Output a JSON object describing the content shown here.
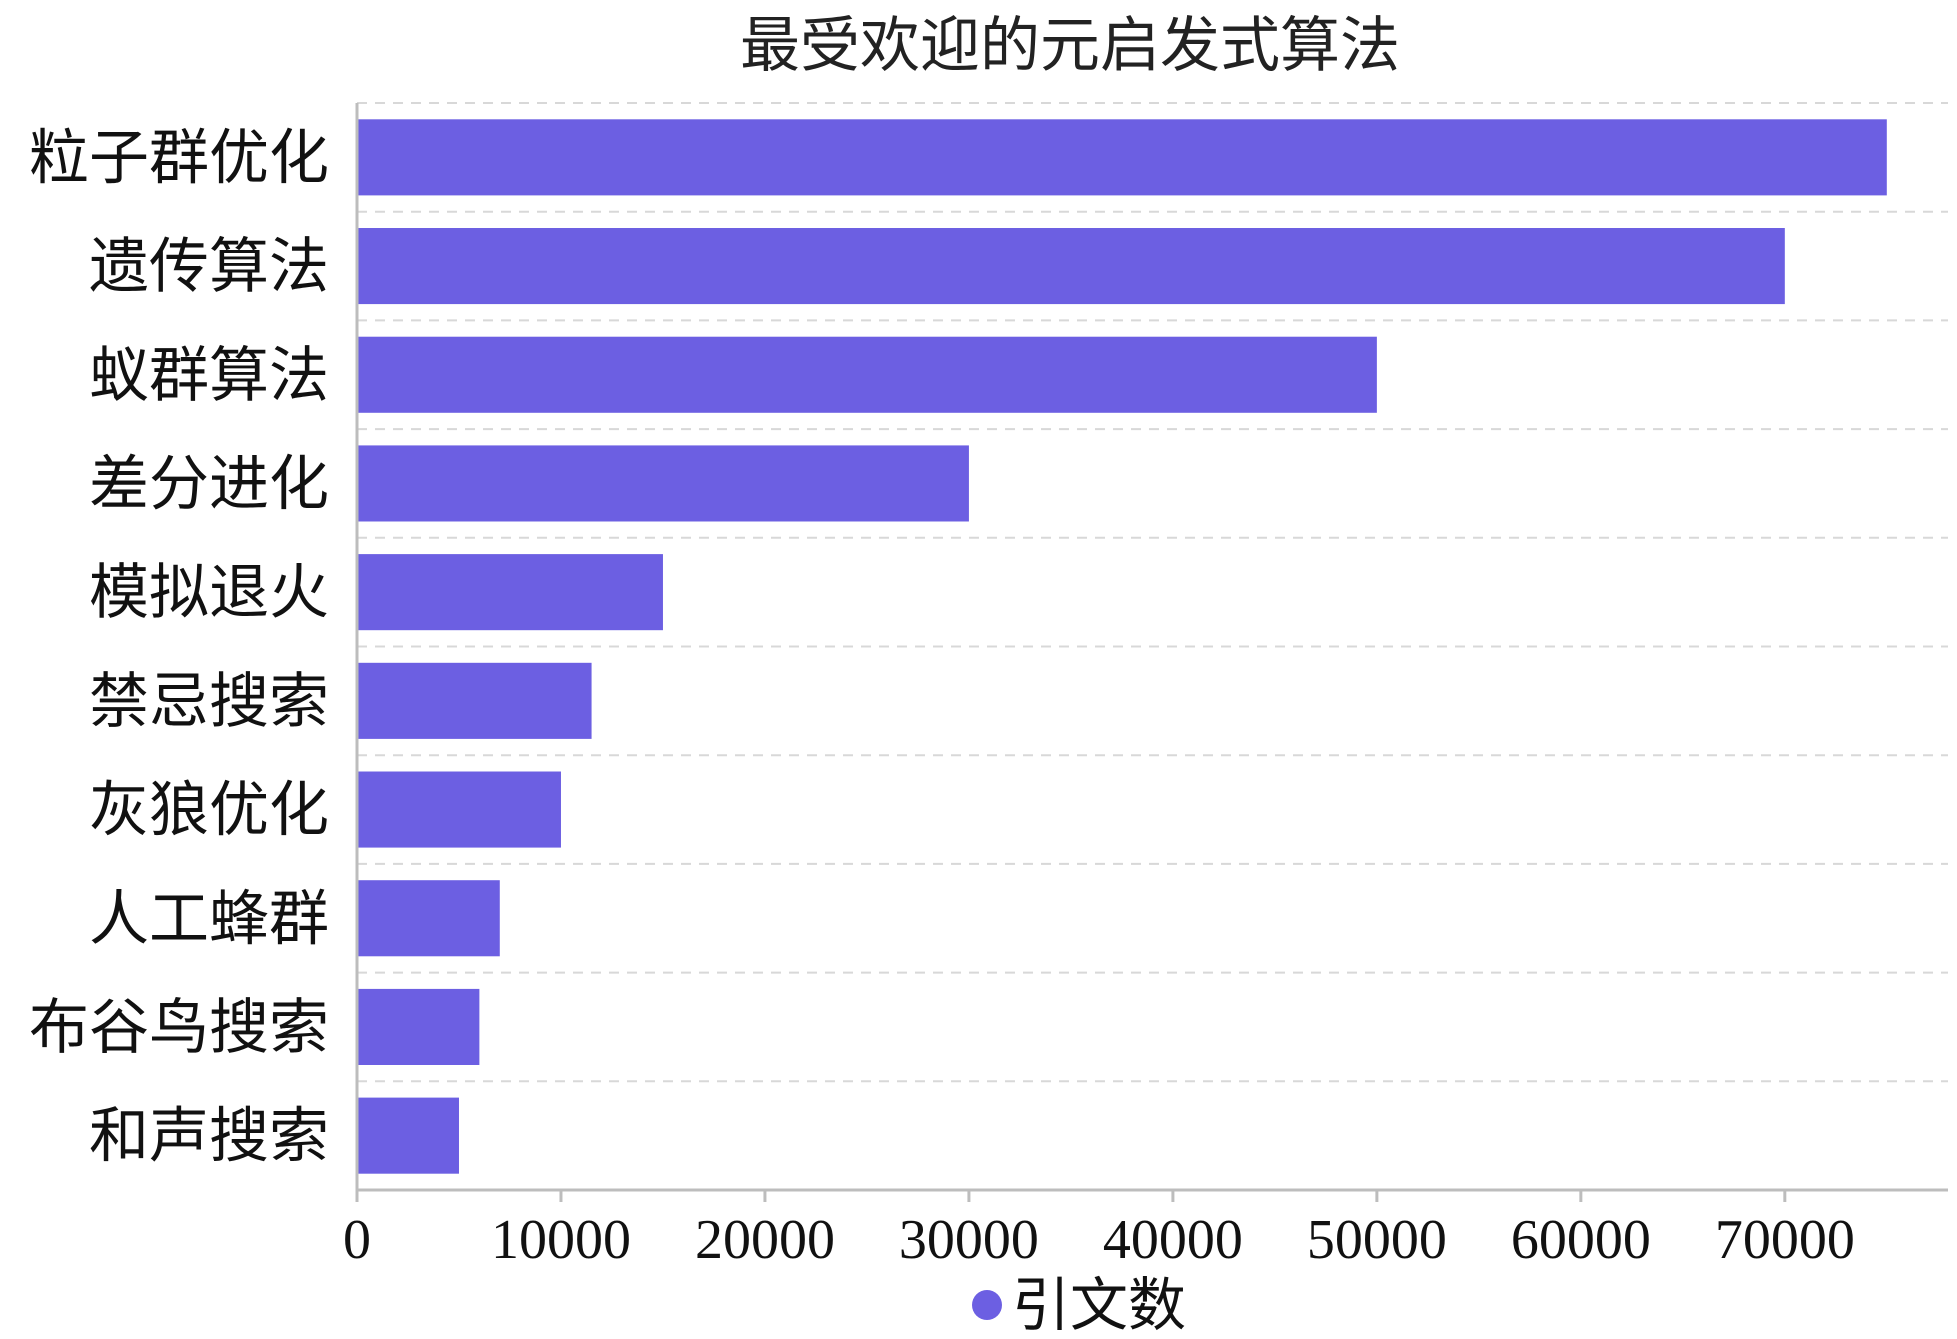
{
  "chart_data": {
    "type": "bar",
    "orientation": "horizontal",
    "title": "最受欢迎的元启发式算法",
    "categories": [
      "粒子群优化",
      "遗传算法",
      "蚁群算法",
      "差分进化",
      "模拟退火",
      "禁忌搜索",
      "灰狼优化",
      "人工蜂群",
      "布谷鸟搜索",
      "和声搜索"
    ],
    "series": [
      {
        "name": "引文数",
        "values": [
          75000,
          70000,
          50000,
          30000,
          15000,
          11500,
          10000,
          7000,
          6000,
          5000
        ]
      }
    ],
    "xlim": [
      0,
      78000
    ],
    "xticks": [
      0,
      10000,
      20000,
      30000,
      40000,
      50000,
      60000,
      70000
    ],
    "bar_color": "#6c5fe2",
    "grid": true,
    "legend_position": "bottom-center"
  }
}
